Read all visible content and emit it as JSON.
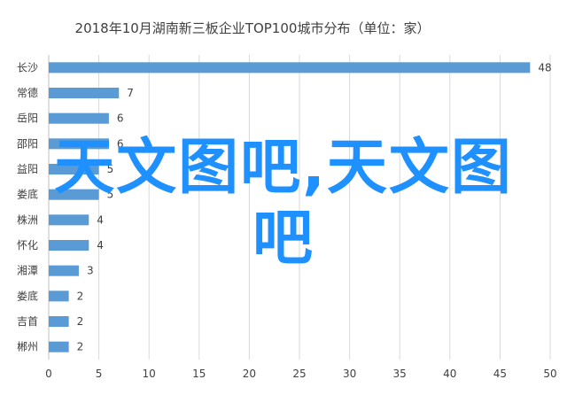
{
  "chart_data": {
    "type": "bar",
    "orientation": "horizontal",
    "title": "2018年10月湖南新三板企业TOP100城市分布（单位：家）",
    "categories": [
      "长沙",
      "常德",
      "岳阳",
      "邵阳",
      "益阳",
      "娄底",
      "株洲",
      "怀化",
      "湘潭",
      "娄底",
      "吉首",
      "郴州"
    ],
    "values": [
      48,
      7,
      6,
      6,
      5,
      5,
      4,
      4,
      3,
      2,
      2,
      2
    ],
    "xlim": [
      0,
      50
    ],
    "xticks": [
      0,
      5,
      10,
      15,
      20,
      25,
      30,
      35,
      40,
      45,
      50
    ],
    "grid": true,
    "bar_color": "#5b9bd5"
  },
  "watermark": {
    "line1": "天文图吧,天文图",
    "line2": "吧",
    "color": "#1e90ff"
  }
}
